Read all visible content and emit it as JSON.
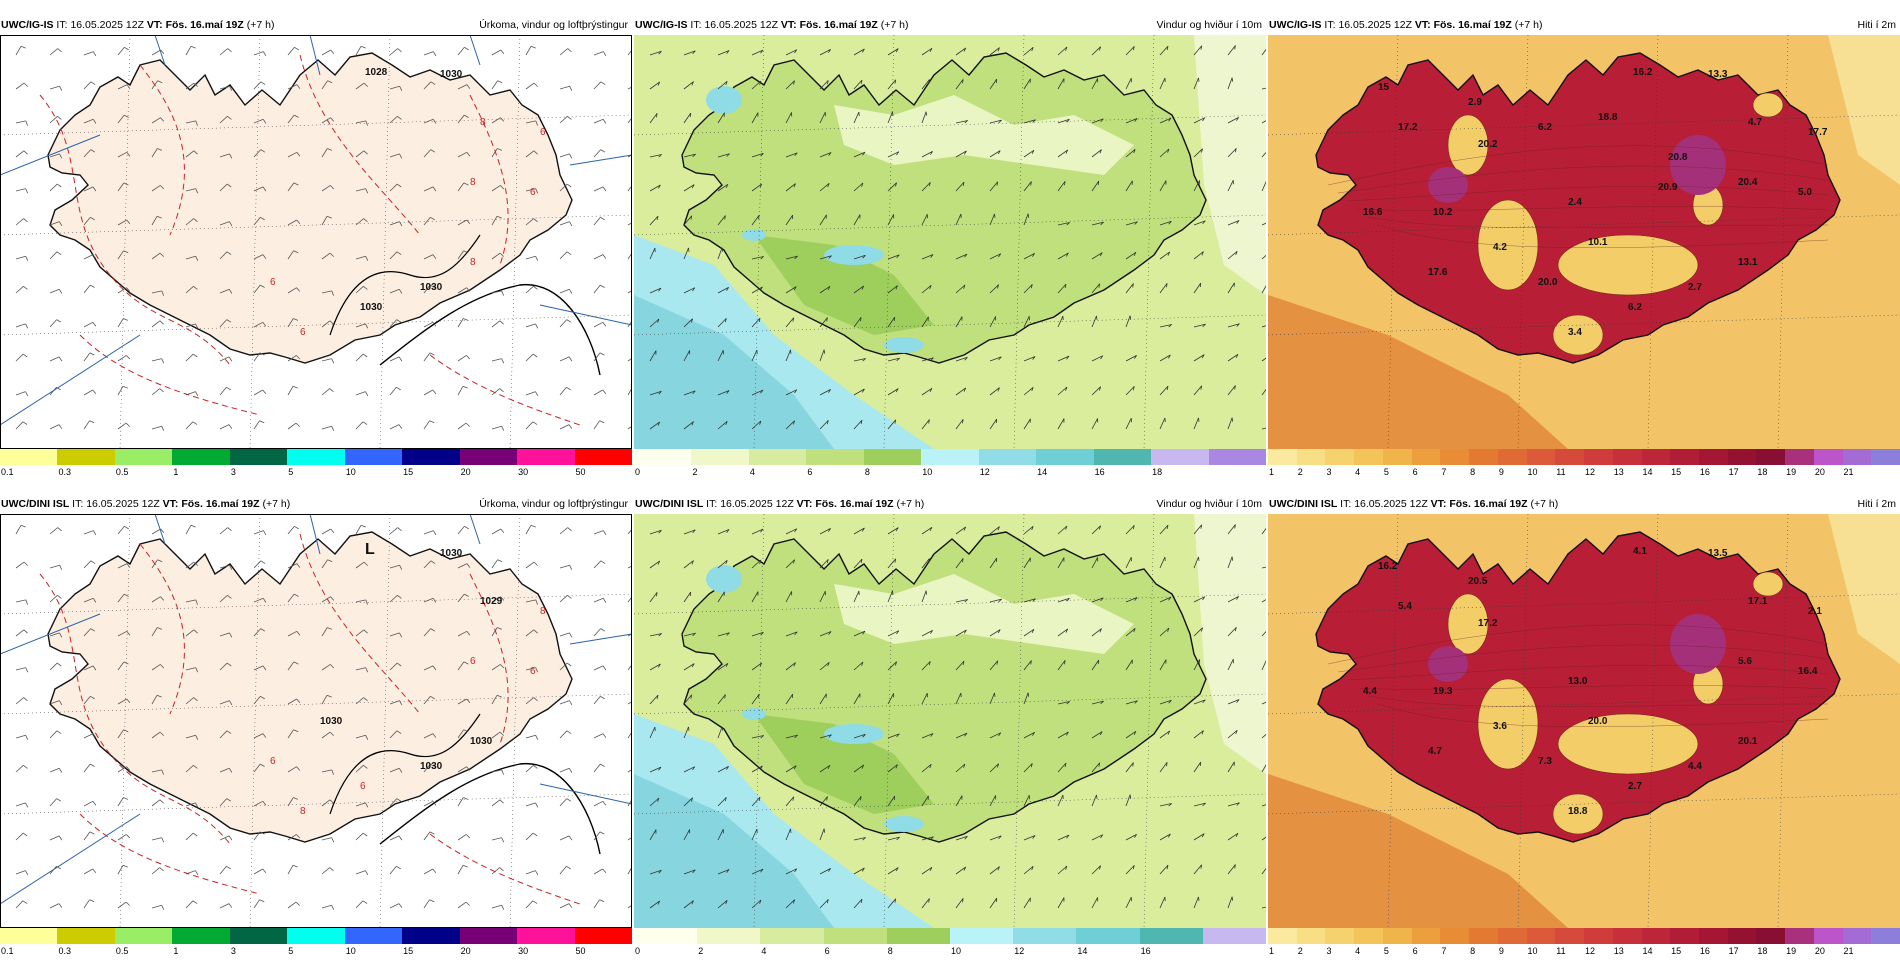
{
  "panels": [
    {
      "id": "p1",
      "model": "UWC/IG-IS",
      "it_label": "IT:",
      "it_value": "16.05.2025 12Z",
      "vt_label": "VT:",
      "vt_value": "Fös. 16.maí 19Z",
      "lead": "(+7 h)",
      "field": "Úrkoma, vindur og loftþrýstingur",
      "kind": "precip",
      "ticks": [
        "0.1",
        "0.3",
        "0.5",
        "1",
        "3",
        "5",
        "10",
        "15",
        "20",
        "30",
        "50"
      ],
      "colors": [
        "#ffff99",
        "#cccc00",
        "#99ee66",
        "#00aa33",
        "#006644",
        "#00ffee",
        "#3366ff",
        "#000088",
        "#770077",
        "#ff1199",
        "#ff0000"
      ],
      "labels": [
        "1030",
        "1028",
        "8",
        "6",
        "6",
        "8",
        "8",
        "1030",
        "1030",
        "6",
        "6"
      ]
    },
    {
      "id": "p2",
      "model": "UWC/IG-IS",
      "it_label": "IT:",
      "it_value": "16.05.2025 12Z",
      "vt_label": "VT:",
      "vt_value": "Fös. 16.maí 19Z",
      "lead": "(+7 h)",
      "field": "Vindur og hviður í 10m",
      "kind": "wind",
      "ticks": [
        "0",
        "2",
        "4",
        "6",
        "8",
        "10",
        "12",
        "14",
        "16",
        "18"
      ],
      "colors": [
        "#ffffee",
        "#f0f7c8",
        "#d8eca0",
        "#bfe07c",
        "#9ecf5c",
        "#b9f2f7",
        "#90dde8",
        "#6fcfd6",
        "#4fb6b0",
        "#c8b8f0",
        "#a888e0"
      ],
      "labels": []
    },
    {
      "id": "p3",
      "model": "UWC/IG-IS",
      "it_label": "IT:",
      "it_value": "16.05.2025 12Z",
      "vt_label": "VT:",
      "vt_value": "Fös. 16.maí 19Z",
      "lead": "(+7 h)",
      "field": "Hiti í 2m",
      "kind": "temp",
      "ticks": [
        "1",
        "2",
        "3",
        "4",
        "5",
        "6",
        "7",
        "8",
        "9",
        "10",
        "11",
        "12",
        "13",
        "14",
        "15",
        "16",
        "17",
        "18",
        "19",
        "20",
        "21"
      ],
      "colors": [
        "#fbe9a0",
        "#f8df85",
        "#f5d26d",
        "#f2c45a",
        "#efb44a",
        "#ec9f3c",
        "#e88c35",
        "#e47a32",
        "#e06a35",
        "#dc5a3a",
        "#d64a3c",
        "#cf3c3b",
        "#c7303a",
        "#bd2638",
        "#b11d36",
        "#a41634",
        "#951131",
        "#880e34",
        "#a8307c",
        "#bb55c9",
        "#a36bd3",
        "#8d7edb"
      ],
      "labels": [
        "13.3",
        "16.2",
        "4.7",
        "17.7",
        "5.0",
        "20.4",
        "13.1",
        "2.7",
        "6.2",
        "3.4",
        "20.0",
        "10.1",
        "4.2",
        "2.4",
        "17.6",
        "16.6",
        "10.2",
        "20.2",
        "17.2",
        "15",
        "2.9",
        "6.2",
        "18.8",
        "20.8",
        "20.9"
      ]
    },
    {
      "id": "p4",
      "model": "UWC/DINI ISL",
      "it_label": "IT:",
      "it_value": "16.05.2025 12Z",
      "vt_label": "VT:",
      "vt_value": "Fös. 16.maí 19Z",
      "lead": "(+7 h)",
      "field": "Úrkoma, vindur og loftþrýstingur",
      "kind": "precip",
      "ticks": [
        "0.1",
        "0.3",
        "0.5",
        "1",
        "3",
        "5",
        "10",
        "15",
        "20",
        "30",
        "50"
      ],
      "colors": [
        "#ffff99",
        "#cccc00",
        "#99ee66",
        "#00aa33",
        "#006644",
        "#00ffee",
        "#3366ff",
        "#000088",
        "#770077",
        "#ff1199",
        "#ff0000"
      ],
      "labels": [
        "1030",
        "L",
        "1029",
        "8",
        "6",
        "6",
        "1030",
        "1030",
        "6",
        "8",
        "6",
        "1030"
      ]
    },
    {
      "id": "p5",
      "model": "UWC/DINI ISL",
      "it_label": "IT:",
      "it_value": "16.05.2025 12Z",
      "vt_label": "VT:",
      "vt_value": "Fös. 16.maí 19Z",
      "lead": "(+7 h)",
      "field": "Vindur og hviður í 10m",
      "kind": "wind",
      "ticks": [
        "0",
        "2",
        "4",
        "6",
        "8",
        "10",
        "12",
        "14",
        "16"
      ],
      "colors": [
        "#ffffee",
        "#f0f7c8",
        "#d8eca0",
        "#bfe07c",
        "#9ecf5c",
        "#b9f2f7",
        "#90dde8",
        "#6fcfd6",
        "#4fb6b0",
        "#c8b8f0"
      ],
      "labels": []
    },
    {
      "id": "p6",
      "model": "UWC/DINI ISL",
      "it_label": "IT:",
      "it_value": "16.05.2025 12Z",
      "vt_label": "VT:",
      "vt_value": "Fös. 16.maí 19Z",
      "lead": "(+7 h)",
      "field": "Hiti í 2m",
      "kind": "temp",
      "ticks": [
        "1",
        "2",
        "3",
        "4",
        "5",
        "6",
        "7",
        "8",
        "9",
        "10",
        "11",
        "12",
        "13",
        "14",
        "15",
        "16",
        "17",
        "18",
        "19",
        "20",
        "21"
      ],
      "colors": [
        "#fbe9a0",
        "#f8df85",
        "#f5d26d",
        "#f2c45a",
        "#efb44a",
        "#ec9f3c",
        "#e88c35",
        "#e47a32",
        "#e06a35",
        "#dc5a3a",
        "#d64a3c",
        "#cf3c3b",
        "#c7303a",
        "#bd2638",
        "#b11d36",
        "#a41634",
        "#951131",
        "#880e34",
        "#a8307c",
        "#bb55c9",
        "#a36bd3",
        "#8d7edb"
      ],
      "labels": [
        "13.5",
        "4.1",
        "17.1",
        "2.1",
        "16.4",
        "5.6",
        "20.1",
        "4.4",
        "2.7",
        "18.8",
        "7.3",
        "20.0",
        "3.6",
        "13.0",
        "4.7",
        "4.4",
        "19.3",
        "17.2",
        "5.4",
        "16.2",
        "20.5"
      ]
    }
  ]
}
